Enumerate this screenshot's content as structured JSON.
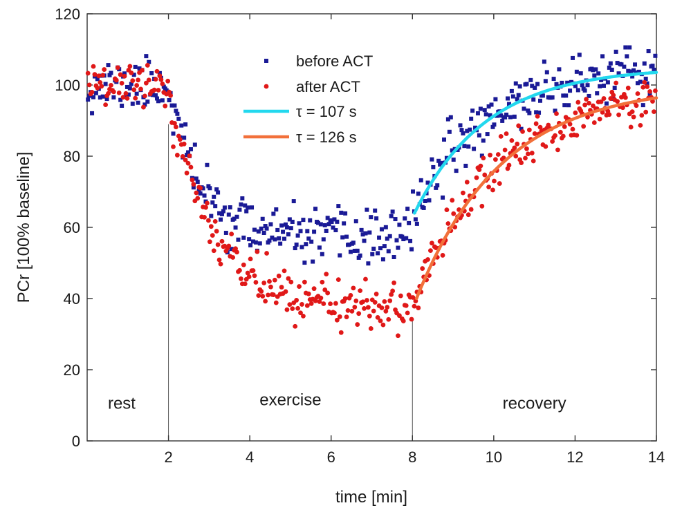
{
  "chart_data": {
    "type": "scatter",
    "xlabel": "time [min]",
    "ylabel": "PCr [100% baseline]",
    "xlim": [
      0.0,
      14.0
    ],
    "ylim": [
      0,
      120
    ],
    "x_ticks": [
      2,
      4,
      6,
      8,
      10,
      12,
      14
    ],
    "y_ticks": [
      0,
      20,
      40,
      60,
      80,
      100,
      120
    ],
    "grid": false,
    "legend_position": "top-center",
    "series": [
      {
        "name": "before ACT",
        "kind": "scatter",
        "marker": "square",
        "color": "#1a1a96",
        "model": {
          "rest_level": 100,
          "rest_end": 2.0,
          "exercise_floor": 57,
          "exercise_tau_min": 0.75,
          "exercise_end": 8.0,
          "recovery_end_level": 105,
          "recovery_start_level": 64,
          "recovery_tau_s": 107,
          "noise": 3.6,
          "seed": 11,
          "step_min": 0.0333
        }
      },
      {
        "name": "after ACT",
        "kind": "scatter",
        "marker": "circle",
        "color": "#e01818",
        "model": {
          "rest_level": 100,
          "rest_end": 2.0,
          "exercise_floor": 37,
          "exercise_tau_min": 1.05,
          "exercise_end": 8.0,
          "recovery_end_level": 100,
          "recovery_start_level": 40,
          "recovery_tau_s": 126,
          "noise": 3.2,
          "seed": 29,
          "step_min": 0.0333
        }
      },
      {
        "name": "τ = 107 s",
        "kind": "line",
        "color": "#22d8ee",
        "fit": {
          "x_start": 8.05,
          "x_end": 14.0,
          "start_level": 64,
          "end_level": 105,
          "tau_s": 107
        }
      },
      {
        "name": "τ = 126 s",
        "kind": "line",
        "color": "#f2703a",
        "fit": {
          "x_start": 8.1,
          "x_end": 14.0,
          "start_level": 40,
          "end_level": 100,
          "tau_s": 126
        }
      }
    ],
    "annotations": [
      {
        "text": "rest",
        "x": 0.85,
        "y": 9
      },
      {
        "text": "exercise",
        "x": 5.0,
        "y": 10
      },
      {
        "text": "recovery",
        "x": 11.0,
        "y": 9
      }
    ],
    "phase_markers": [
      {
        "x": 2.0,
        "y_top": 89
      },
      {
        "x": 8.0,
        "y_top": 34
      }
    ]
  }
}
